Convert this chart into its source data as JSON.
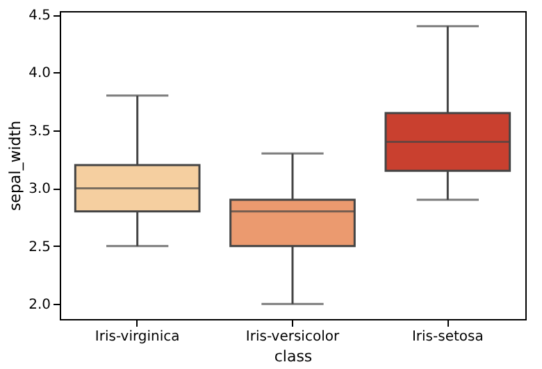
{
  "chart_data": {
    "type": "box",
    "xlabel": "class",
    "ylabel": "sepal_width",
    "categories": [
      "Iris-virginica",
      "Iris-versicolor",
      "Iris-setosa"
    ],
    "colors": [
      "#f5cfa0",
      "#eb9a6f",
      "#c9402f"
    ],
    "boxes": [
      {
        "low": 2.5,
        "q1": 2.8,
        "median": 3.0,
        "q3": 3.2,
        "high": 3.8
      },
      {
        "low": 2.0,
        "q1": 2.5,
        "median": 2.8,
        "q3": 2.9,
        "high": 3.3
      },
      {
        "low": 2.9,
        "q1": 3.15,
        "median": 3.4,
        "q3": 3.65,
        "high": 4.4
      }
    ],
    "ylim": [
      1.87,
      4.53
    ],
    "yticks": [
      {
        "value": 2.0,
        "label": "2.0"
      },
      {
        "value": 2.5,
        "label": "2.5"
      },
      {
        "value": 3.0,
        "label": "3.0"
      },
      {
        "value": 3.5,
        "label": "3.5"
      },
      {
        "value": 4.0,
        "label": "4.0"
      },
      {
        "value": 4.5,
        "label": "4.5"
      }
    ],
    "grid": false
  }
}
